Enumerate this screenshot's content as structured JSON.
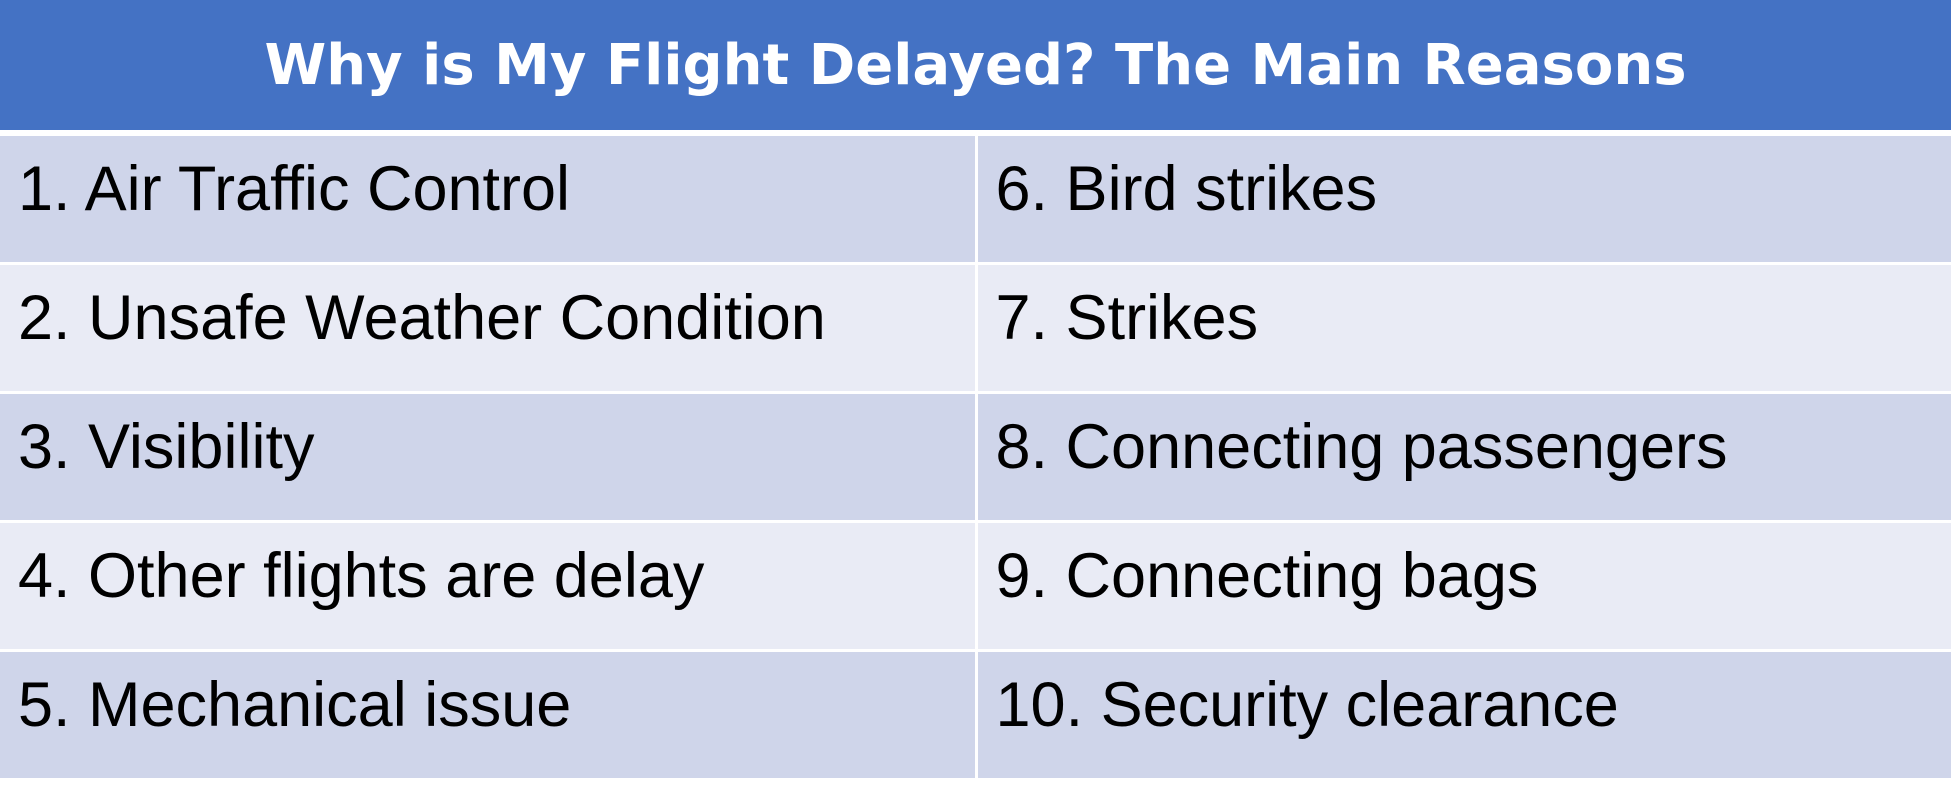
{
  "table": {
    "title": "Why is My Flight Delayed?  The Main Reasons",
    "rows": [
      {
        "left": "1. Air Traffic Control",
        "right": "6. Bird strikes"
      },
      {
        "left": "2. Unsafe Weather Condition",
        "right": "7. Strikes"
      },
      {
        "left": "3. Visibility",
        "right": "8. Connecting passengers"
      },
      {
        "left": "4. Other flights are delay",
        "right": "9. Connecting bags"
      },
      {
        "left": "5. Mechanical issue",
        "right": "10. Security clearance"
      }
    ]
  },
  "colors": {
    "header_bg": "#4472c4",
    "header_text": "#ffffff",
    "row_odd_bg": "#cfd5ea",
    "row_even_bg": "#e9ebf5",
    "cell_text": "#000000"
  }
}
